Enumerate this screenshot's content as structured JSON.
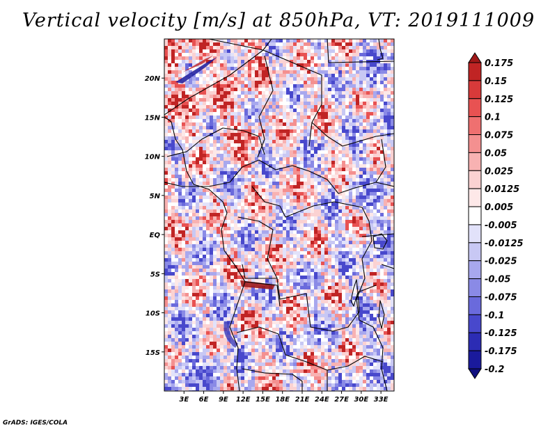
{
  "title": "Vertical velocity [m/s] at 850hPa, VT: 2019111009",
  "footer": "GrADS: IGES/COLA",
  "map": {
    "lon_range": [
      0,
      35
    ],
    "lat_range": [
      -20,
      25
    ],
    "lat_ticks": [
      {
        "value": 20,
        "label": "20N"
      },
      {
        "value": 15,
        "label": "15N"
      },
      {
        "value": 10,
        "label": "10N"
      },
      {
        "value": 5,
        "label": "5N"
      },
      {
        "value": 0,
        "label": "EQ"
      },
      {
        "value": -5,
        "label": "5S"
      },
      {
        "value": -10,
        "label": "10S"
      },
      {
        "value": -15,
        "label": "15S"
      }
    ],
    "lon_ticks": [
      {
        "value": 3,
        "label": "3E"
      },
      {
        "value": 6,
        "label": "6E"
      },
      {
        "value": 9,
        "label": "9E"
      },
      {
        "value": 12,
        "label": "12E"
      },
      {
        "value": 15,
        "label": "15E"
      },
      {
        "value": 18,
        "label": "18E"
      },
      {
        "value": 21,
        "label": "21E"
      },
      {
        "value": 24,
        "label": "24E"
      },
      {
        "value": 27,
        "label": "27E"
      },
      {
        "value": 30,
        "label": "30E"
      },
      {
        "value": 33,
        "label": "33E"
      }
    ]
  },
  "colorbar": {
    "labels": [
      "0.175",
      "0.15",
      "0.125",
      "0.1",
      "0.075",
      "0.05",
      "0.025",
      "0.0125",
      "0.005",
      "-0.005",
      "-0.0125",
      "-0.025",
      "-0.05",
      "-0.075",
      "-0.1",
      "-0.125",
      "-0.175",
      "-0.2"
    ],
    "colors": [
      "#a01818",
      "#c02424",
      "#d83a3a",
      "#e85252",
      "#ef7070",
      "#f49090",
      "#f8b2b2",
      "#fbd2d2",
      "#fde8e8",
      "#ffffff",
      "#e2e2fa",
      "#c8c8f4",
      "#a8a8ee",
      "#8a8ae6",
      "#6a6adc",
      "#4848cc",
      "#2c2cb4",
      "#1a1a9c",
      "#101080"
    ]
  },
  "chart_data": {
    "type": "heatmap",
    "title": "Vertical velocity [m/s] at 850hPa, VT: 2019111009",
    "variable": "Vertical velocity",
    "units": "m/s",
    "level": "850hPa",
    "valid_time": "2019111009",
    "lon_range": [
      0,
      35
    ],
    "lat_range": [
      -20,
      25
    ],
    "contour_levels": [
      -0.2,
      -0.175,
      -0.125,
      -0.1,
      -0.075,
      -0.05,
      -0.025,
      -0.0125,
      -0.005,
      0.005,
      0.0125,
      0.025,
      0.05,
      0.075,
      0.1,
      0.125,
      0.15,
      0.175
    ]
  }
}
